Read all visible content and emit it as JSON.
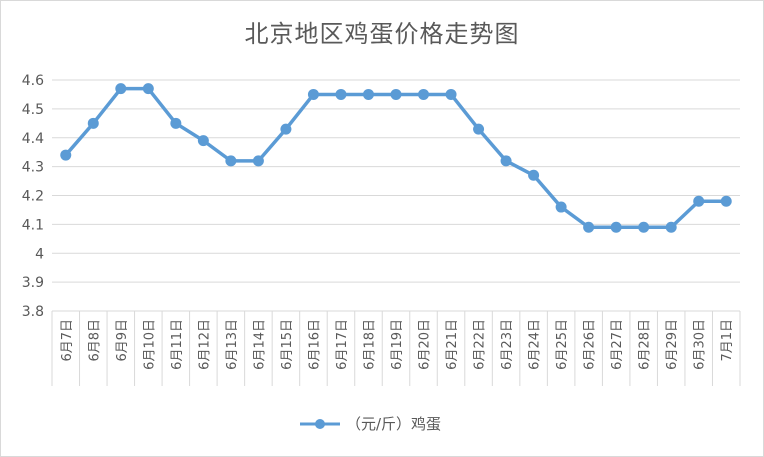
{
  "chart_data": {
    "type": "line",
    "title": "北京地区鸡蛋价格走势图",
    "categories": [
      "6月7日",
      "6月8日",
      "6月9日",
      "6月10日",
      "6月11日",
      "6月12日",
      "6月13日",
      "6月14日",
      "6月15日",
      "6月16日",
      "6月17日",
      "6月18日",
      "6月19日",
      "6月20日",
      "6月21日",
      "6月22日",
      "6月23日",
      "6月24日",
      "6月25日",
      "6月26日",
      "6月27日",
      "6月28日",
      "6月29日",
      "6月30日",
      "7月1日"
    ],
    "series": [
      {
        "name": "（元/斤）鸡蛋",
        "values": [
          4.34,
          4.45,
          4.57,
          4.57,
          4.45,
          4.39,
          4.32,
          4.32,
          4.43,
          4.55,
          4.55,
          4.55,
          4.55,
          4.55,
          4.55,
          4.43,
          4.32,
          4.27,
          4.16,
          4.09,
          4.09,
          4.09,
          4.09,
          4.18,
          4.18
        ],
        "color": "#5b9bd5"
      }
    ],
    "ylim": [
      3.8,
      4.6
    ],
    "yticks": [
      "4.6",
      "4.5",
      "4.4",
      "4.3",
      "4.2",
      "4.1",
      "4",
      "3.9",
      "3.8"
    ],
    "grid": true,
    "legend": "bottom"
  }
}
